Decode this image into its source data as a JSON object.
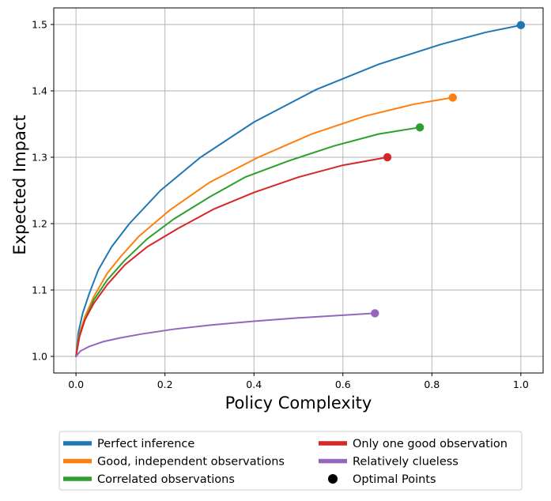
{
  "chart_data": {
    "type": "line",
    "xlabel": "Policy Complexity",
    "ylabel": "Expected Impact",
    "xlim": [
      -0.05,
      1.05
    ],
    "ylim": [
      0.975,
      1.525
    ],
    "xticks": [
      0.0,
      0.2,
      0.4,
      0.6,
      0.8,
      1.0
    ],
    "xtick_labels": [
      "0.0",
      "0.2",
      "0.4",
      "0.6",
      "0.8",
      "1.0"
    ],
    "yticks": [
      1.0,
      1.1,
      1.2,
      1.3,
      1.4,
      1.5
    ],
    "ytick_labels": [
      "1.0",
      "1.1",
      "1.2",
      "1.3",
      "1.4",
      "1.5"
    ],
    "grid": true,
    "legend_placement": "below",
    "series": [
      {
        "name": "Perfect inference",
        "color": "#1f77b4",
        "points": [
          [
            0.0,
            1.0
          ],
          [
            0.005,
            1.035
          ],
          [
            0.015,
            1.065
          ],
          [
            0.03,
            1.095
          ],
          [
            0.05,
            1.13
          ],
          [
            0.08,
            1.165
          ],
          [
            0.12,
            1.2
          ],
          [
            0.19,
            1.25
          ],
          [
            0.28,
            1.3
          ],
          [
            0.4,
            1.353
          ],
          [
            0.54,
            1.402
          ],
          [
            0.68,
            1.44
          ],
          [
            0.82,
            1.47
          ],
          [
            0.92,
            1.488
          ],
          [
            1.0,
            1.499
          ]
        ],
        "optimal": [
          1.0,
          1.499
        ]
      },
      {
        "name": "Good, independent observations",
        "color": "#ff7f0e",
        "points": [
          [
            0.0,
            1.0
          ],
          [
            0.006,
            1.03
          ],
          [
            0.02,
            1.06
          ],
          [
            0.04,
            1.09
          ],
          [
            0.07,
            1.125
          ],
          [
            0.1,
            1.15
          ],
          [
            0.14,
            1.18
          ],
          [
            0.21,
            1.22
          ],
          [
            0.3,
            1.262
          ],
          [
            0.41,
            1.3
          ],
          [
            0.53,
            1.335
          ],
          [
            0.65,
            1.362
          ],
          [
            0.76,
            1.38
          ],
          [
            0.847,
            1.39
          ]
        ],
        "optimal": [
          0.847,
          1.39
        ]
      },
      {
        "name": "Correlated observations",
        "color": "#2ca02c",
        "points": [
          [
            0.0,
            1.0
          ],
          [
            0.007,
            1.03
          ],
          [
            0.02,
            1.055
          ],
          [
            0.04,
            1.085
          ],
          [
            0.07,
            1.115
          ],
          [
            0.11,
            1.145
          ],
          [
            0.16,
            1.177
          ],
          [
            0.22,
            1.207
          ],
          [
            0.3,
            1.24
          ],
          [
            0.38,
            1.27
          ],
          [
            0.48,
            1.295
          ],
          [
            0.58,
            1.317
          ],
          [
            0.68,
            1.335
          ],
          [
            0.773,
            1.345
          ]
        ],
        "optimal": [
          0.773,
          1.345
        ]
      },
      {
        "name": "Only one good observation",
        "color": "#d62728",
        "points": [
          [
            0.0,
            1.0
          ],
          [
            0.008,
            1.03
          ],
          [
            0.02,
            1.055
          ],
          [
            0.04,
            1.08
          ],
          [
            0.07,
            1.108
          ],
          [
            0.11,
            1.138
          ],
          [
            0.16,
            1.165
          ],
          [
            0.23,
            1.193
          ],
          [
            0.31,
            1.222
          ],
          [
            0.4,
            1.247
          ],
          [
            0.5,
            1.27
          ],
          [
            0.6,
            1.288
          ],
          [
            0.7,
            1.3
          ]
        ],
        "optimal": [
          0.7,
          1.3
        ]
      },
      {
        "name": "Relatively clueless",
        "color": "#9467bd",
        "points": [
          [
            0.0,
            1.0
          ],
          [
            0.01,
            1.008
          ],
          [
            0.03,
            1.015
          ],
          [
            0.06,
            1.022
          ],
          [
            0.1,
            1.028
          ],
          [
            0.15,
            1.034
          ],
          [
            0.22,
            1.041
          ],
          [
            0.3,
            1.047
          ],
          [
            0.4,
            1.053
          ],
          [
            0.5,
            1.058
          ],
          [
            0.6,
            1.062
          ],
          [
            0.672,
            1.065
          ]
        ],
        "optimal": [
          0.672,
          1.065
        ]
      }
    ],
    "legend": {
      "optimal_label": "Optimal Points",
      "optimal_marker_color": "#000000"
    }
  }
}
